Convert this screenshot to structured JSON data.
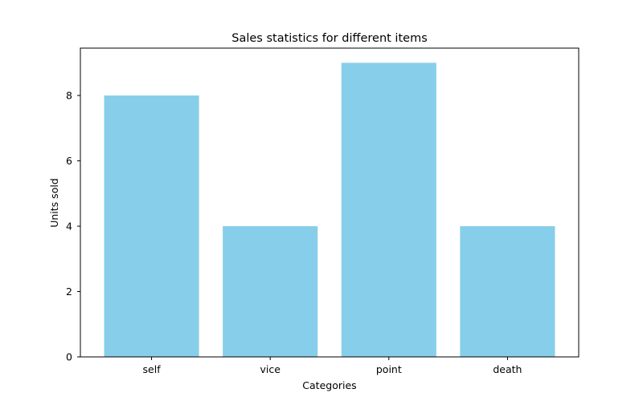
{
  "chart_data": {
    "type": "bar",
    "title": "Sales statistics for different items",
    "xlabel": "Categories",
    "ylabel": "Units sold",
    "categories": [
      "self",
      "vice",
      "point",
      "death"
    ],
    "values": [
      8,
      4,
      9,
      4
    ],
    "ylim": [
      0,
      9.45
    ],
    "yticks": [
      0,
      2,
      4,
      6,
      8
    ],
    "bar_color": "#87CEEB",
    "grid": false,
    "legend": "none"
  }
}
